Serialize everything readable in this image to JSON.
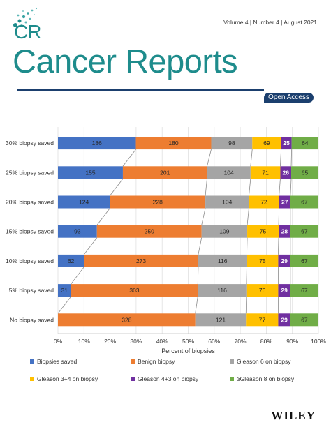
{
  "header": {
    "logo_text": "CR",
    "volume_line": "Volume 4 | Number 4 | August 2021",
    "journal_title": "Cancer Reports",
    "access_badge": "Open Access",
    "brand_color": "#1e8c8c",
    "navy_color": "#1b3f6e"
  },
  "publisher": "WILEY",
  "chart_data": {
    "type": "bar",
    "orientation": "horizontal",
    "stacked": "percent",
    "categories": [
      "30% biopsy saved",
      "25% biopsy saved",
      "20% biopsy saved",
      "15% biopsy saved",
      "10% biopsy saved",
      "5% biopsy saved",
      "No biopsy saved"
    ],
    "series": [
      {
        "name": "Biopsies saved",
        "color": "#4472c4",
        "values": [
          186,
          155,
          124,
          93,
          62,
          31,
          0
        ]
      },
      {
        "name": "Benign biopsy",
        "color": "#ed7d31",
        "values": [
          180,
          201,
          228,
          250,
          273,
          303,
          328
        ]
      },
      {
        "name": "Gleason 6 on biopsy",
        "color": "#a5a5a5",
        "values": [
          98,
          104,
          104,
          109,
          116,
          116,
          121
        ]
      },
      {
        "name": "Gleason 3+4 on biopsy",
        "color": "#ffc000",
        "values": [
          69,
          71,
          72,
          75,
          75,
          76,
          77
        ]
      },
      {
        "name": "Gleason 4+3 on biopsy",
        "color": "#7030a0",
        "values": [
          25,
          26,
          27,
          28,
          29,
          29,
          29
        ]
      },
      {
        "name": "≥Gleason 8 on biopsy",
        "color": "#70ad47",
        "values": [
          64,
          65,
          67,
          67,
          67,
          67,
          67
        ]
      }
    ],
    "xlabel": "Percent of biopsies",
    "xticks": [
      "0%",
      "10%",
      "20%",
      "30%",
      "40%",
      "50%",
      "60%",
      "70%",
      "80%",
      "90%",
      "100%"
    ],
    "xlim": [
      0,
      100
    ],
    "connector_lines": true,
    "legend_position": "bottom"
  }
}
